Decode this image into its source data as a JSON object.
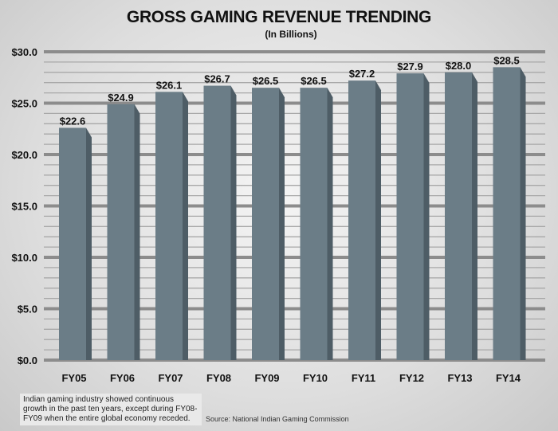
{
  "chart_data": {
    "type": "bar",
    "title": "GROSS GAMING REVENUE TRENDING",
    "subtitle": "(In Billions)",
    "categories": [
      "FY05",
      "FY06",
      "FY07",
      "FY08",
      "FY09",
      "FY10",
      "FY11",
      "FY12",
      "FY13",
      "FY14"
    ],
    "values": [
      22.6,
      24.9,
      26.1,
      26.7,
      26.5,
      26.5,
      27.2,
      27.9,
      28.0,
      28.5
    ],
    "data_labels": [
      "$22.6",
      "$24.9",
      "$26.1",
      "$26.7",
      "$26.5",
      "$26.5",
      "$27.2",
      "$27.9",
      "$28.0",
      "$28.5"
    ],
    "yticks": [
      0,
      5,
      10,
      15,
      20,
      25,
      30
    ],
    "ytick_labels": [
      "$0.0",
      "$5.0",
      "$10.0",
      "$15.0",
      "$20.0",
      "$25.0",
      "$30.0"
    ],
    "ylim": [
      0,
      30
    ],
    "grid": true,
    "xlabel": "",
    "ylabel": "",
    "bar_color": "#6b7d87"
  },
  "note": "Indian gaming industry showed continuous growth in the past ten years, except during FY08-FY09 when the entire global economy receded.",
  "source": "Source: National Indian Gaming Commission"
}
